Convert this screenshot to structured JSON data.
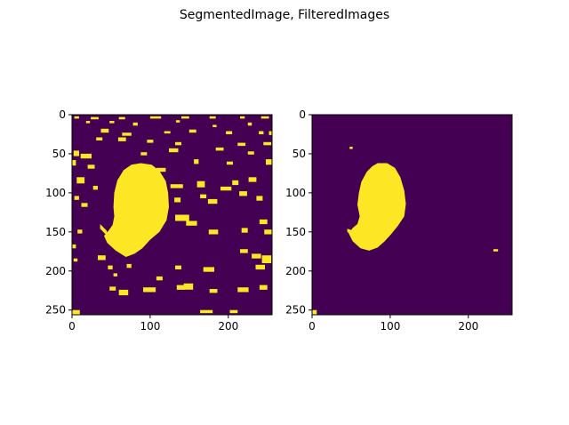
{
  "title": "SegmentedImage, FilteredImages",
  "chart_data": [
    {
      "type": "heatmap",
      "name": "segmented-image",
      "title": "",
      "xlim": [
        0,
        256
      ],
      "ylim": [
        256,
        0
      ],
      "xticks": [
        0,
        100,
        200
      ],
      "yticks": [
        0,
        50,
        100,
        150,
        200,
        250
      ],
      "colors": {
        "background": "#440154",
        "foreground": "#fde725"
      },
      "main_blob": [
        [
          88,
          62
        ],
        [
          102,
          64
        ],
        [
          112,
          72
        ],
        [
          120,
          85
        ],
        [
          123,
          100
        ],
        [
          124,
          118
        ],
        [
          121,
          135
        ],
        [
          112,
          150
        ],
        [
          100,
          160
        ],
        [
          90,
          171
        ],
        [
          80,
          178
        ],
        [
          69,
          182
        ],
        [
          56,
          174
        ],
        [
          45,
          164
        ],
        [
          41,
          155
        ],
        [
          47,
          148
        ],
        [
          52,
          141
        ],
        [
          54,
          130
        ],
        [
          53,
          118
        ],
        [
          54,
          100
        ],
        [
          58,
          84
        ],
        [
          66,
          71
        ],
        [
          76,
          64
        ]
      ],
      "tail": [
        [
          36,
          140
        ],
        [
          44,
          148
        ],
        [
          47,
          156
        ],
        [
          42,
          152
        ],
        [
          36,
          146
        ]
      ],
      "specks": [
        [
          3,
          2,
          6,
          3
        ],
        [
          24,
          3,
          10,
          3
        ],
        [
          60,
          3,
          8,
          3
        ],
        [
          100,
          2,
          14,
          3
        ],
        [
          140,
          2,
          10,
          3
        ],
        [
          176,
          2,
          8,
          3
        ],
        [
          215,
          2,
          6,
          3
        ],
        [
          242,
          2,
          10,
          3
        ],
        [
          18,
          8,
          5,
          3
        ],
        [
          48,
          8,
          6,
          3
        ],
        [
          78,
          10,
          6,
          4
        ],
        [
          133,
          7,
          5,
          3
        ],
        [
          180,
          13,
          5,
          3
        ],
        [
          225,
          10,
          5,
          4
        ],
        [
          37,
          18,
          10,
          5
        ],
        [
          64,
          23,
          12,
          4
        ],
        [
          118,
          21,
          8,
          3
        ],
        [
          150,
          19,
          9,
          4
        ],
        [
          197,
          21,
          8,
          4
        ],
        [
          239,
          21,
          6,
          4
        ],
        [
          252,
          21,
          4,
          5
        ],
        [
          31,
          29,
          8,
          4
        ],
        [
          59,
          29,
          10,
          5
        ],
        [
          96,
          32,
          8,
          4
        ],
        [
          132,
          35,
          8,
          4
        ],
        [
          212,
          36,
          10,
          4
        ],
        [
          245,
          35,
          10,
          4
        ],
        [
          2,
          46,
          7,
          7
        ],
        [
          11,
          50,
          14,
          6
        ],
        [
          88,
          48,
          8,
          4
        ],
        [
          124,
          43,
          12,
          5
        ],
        [
          184,
          42,
          10,
          4
        ],
        [
          225,
          47,
          8,
          4
        ],
        [
          0,
          58,
          5,
          7
        ],
        [
          20,
          64,
          9,
          5
        ],
        [
          108,
          68,
          12,
          5
        ],
        [
          156,
          57,
          6,
          6
        ],
        [
          198,
          60,
          8,
          4
        ],
        [
          248,
          57,
          8,
          7
        ],
        [
          6,
          80,
          10,
          8
        ],
        [
          27,
          91,
          6,
          5
        ],
        [
          126,
          89,
          16,
          5
        ],
        [
          160,
          85,
          10,
          8
        ],
        [
          205,
          84,
          8,
          6
        ],
        [
          226,
          80,
          10,
          6
        ],
        [
          190,
          92,
          14,
          5
        ],
        [
          214,
          98,
          10,
          6
        ],
        [
          3,
          104,
          6,
          5
        ],
        [
          131,
          106,
          8,
          6
        ],
        [
          164,
          102,
          8,
          5
        ],
        [
          174,
          108,
          12,
          6
        ],
        [
          236,
          104,
          8,
          6
        ],
        [
          12,
          113,
          8,
          5
        ],
        [
          132,
          128,
          18,
          8
        ],
        [
          146,
          136,
          14,
          6
        ],
        [
          240,
          134,
          10,
          6
        ],
        [
          7,
          147,
          6,
          5
        ],
        [
          90,
          153,
          12,
          5
        ],
        [
          175,
          147,
          12,
          6
        ],
        [
          217,
          145,
          8,
          6
        ],
        [
          246,
          147,
          10,
          6
        ],
        [
          0,
          166,
          5,
          5
        ],
        [
          215,
          172,
          10,
          5
        ],
        [
          230,
          178,
          12,
          6
        ],
        [
          243,
          180,
          12,
          10
        ],
        [
          2,
          184,
          5,
          4
        ],
        [
          33,
          180,
          10,
          6
        ],
        [
          46,
          193,
          6,
          5
        ],
        [
          70,
          191,
          6,
          5
        ],
        [
          132,
          193,
          8,
          5
        ],
        [
          168,
          195,
          14,
          6
        ],
        [
          235,
          192,
          12,
          6
        ],
        [
          53,
          203,
          5,
          4
        ],
        [
          108,
          207,
          8,
          5
        ],
        [
          134,
          218,
          10,
          6
        ],
        [
          48,
          220,
          8,
          5
        ],
        [
          60,
          224,
          12,
          7
        ],
        [
          143,
          216,
          12,
          8
        ],
        [
          240,
          218,
          10,
          6
        ],
        [
          91,
          221,
          16,
          6
        ],
        [
          176,
          223,
          10,
          5
        ],
        [
          212,
          221,
          14,
          6
        ],
        [
          0,
          250,
          10,
          6
        ],
        [
          164,
          250,
          16,
          4
        ],
        [
          202,
          250,
          10,
          4
        ]
      ]
    },
    {
      "type": "heatmap",
      "name": "filtered-image",
      "title": "",
      "xlim": [
        0,
        256
      ],
      "ylim": [
        256,
        0
      ],
      "xticks": [
        0,
        100,
        200
      ],
      "yticks": [
        0,
        50,
        100,
        150,
        200,
        250
      ],
      "colors": {
        "background": "#440154",
        "foreground": "#fde725"
      },
      "main_blob": [
        [
          84,
          62
        ],
        [
          96,
          62
        ],
        [
          106,
          68
        ],
        [
          113,
          80
        ],
        [
          118,
          97
        ],
        [
          120,
          114
        ],
        [
          118,
          130
        ],
        [
          110,
          142
        ],
        [
          102,
          152
        ],
        [
          93,
          162
        ],
        [
          84,
          170
        ],
        [
          73,
          174
        ],
        [
          62,
          171
        ],
        [
          52,
          162
        ],
        [
          47,
          152
        ],
        [
          52,
          145
        ],
        [
          58,
          140
        ],
        [
          61,
          130
        ],
        [
          58,
          115
        ],
        [
          60,
          100
        ],
        [
          63,
          86
        ],
        [
          70,
          73
        ],
        [
          77,
          66
        ]
      ],
      "tail": [
        [
          45,
          146
        ],
        [
          52,
          148
        ],
        [
          56,
          156
        ],
        [
          50,
          154
        ],
        [
          45,
          150
        ]
      ],
      "specks": [
        [
          48,
          41,
          4,
          3
        ],
        [
          232,
          172,
          6,
          3
        ],
        [
          0,
          250,
          6,
          6
        ]
      ]
    }
  ]
}
